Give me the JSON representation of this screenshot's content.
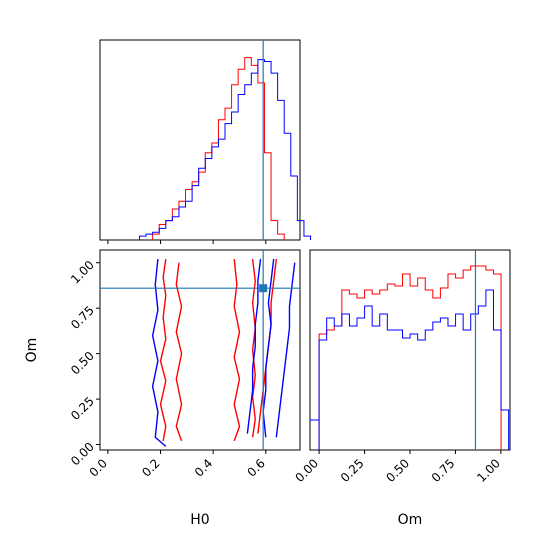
{
  "chart_data": {
    "type": "corner",
    "params": [
      "H0",
      "Om"
    ],
    "truth": {
      "H0": 0.59,
      "Om": 0.86
    },
    "colors": {
      "series_a": "#ff0000",
      "series_b": "#0000ff",
      "truth": "#1f77b4"
    },
    "panels": {
      "h0_hist": {
        "type": "histogram",
        "xlim": [
          -0.03,
          0.73
        ],
        "bin_width": 0.025,
        "series": [
          {
            "color": "#ff0000",
            "bin_start": 0.17,
            "values": [
              0.03,
              0.08,
              0.1,
              0.16,
              0.2,
              0.26,
              0.3,
              0.35,
              0.45,
              0.5,
              0.62,
              0.68,
              0.8,
              0.88,
              0.94,
              0.9,
              0.81,
              0.45,
              0.1,
              0.03
            ]
          },
          {
            "color": "#0000ff",
            "bin_start": 0.12,
            "values": [
              0.02,
              0.03,
              0.04,
              0.06,
              0.1,
              0.12,
              0.17,
              0.2,
              0.28,
              0.37,
              0.42,
              0.48,
              0.52,
              0.6,
              0.66,
              0.75,
              0.8,
              0.86,
              0.93,
              0.92,
              0.86,
              0.72,
              0.55,
              0.33,
              0.1,
              0.02
            ]
          }
        ]
      },
      "om_hist": {
        "type": "histogram",
        "xlim": [
          -0.05,
          1.05
        ],
        "bin_width": 0.0417,
        "bin_start": 0.0,
        "series": [
          {
            "color": "#ff0000",
            "values": [
              0.58,
              0.6,
              0.62,
              0.8,
              0.78,
              0.76,
              0.8,
              0.78,
              0.8,
              0.83,
              0.82,
              0.88,
              0.82,
              0.86,
              0.8,
              0.76,
              0.81,
              0.88,
              0.86,
              0.9,
              0.92,
              0.92,
              0.9,
              0.88
            ]
          },
          {
            "color": "#0000ff",
            "values": [
              0.55,
              0.66,
              0.62,
              0.68,
              0.62,
              0.66,
              0.72,
              0.62,
              0.68,
              0.6,
              0.6,
              0.56,
              0.58,
              0.55,
              0.6,
              0.64,
              0.66,
              0.62,
              0.68,
              0.6,
              0.68,
              0.72,
              0.8,
              0.6,
              0.2
            ]
          }
        ]
      },
      "joint": {
        "type": "contour",
        "xlim": [
          -0.03,
          0.73
        ],
        "ylim": [
          -0.03,
          1.07
        ],
        "series": [
          {
            "color": "#ff0000",
            "contours": [
              [
                [
                  0.22,
                  1.02
                ],
                [
                  0.21,
                  0.92
                ],
                [
                  0.22,
                  0.82
                ],
                [
                  0.21,
                  0.7
                ],
                [
                  0.22,
                  0.58
                ],
                [
                  0.2,
                  0.46
                ],
                [
                  0.22,
                  0.35
                ],
                [
                  0.2,
                  0.22
                ],
                [
                  0.22,
                  0.1
                ],
                [
                  0.21,
                  0.02
                ]
              ],
              [
                [
                  0.27,
                  1.0
                ],
                [
                  0.26,
                  0.88
                ],
                [
                  0.28,
                  0.76
                ],
                [
                  0.26,
                  0.62
                ],
                [
                  0.28,
                  0.5
                ],
                [
                  0.26,
                  0.36
                ],
                [
                  0.28,
                  0.22
                ],
                [
                  0.26,
                  0.1
                ],
                [
                  0.28,
                  0.02
                ]
              ],
              [
                [
                  0.48,
                  1.02
                ],
                [
                  0.49,
                  0.88
                ],
                [
                  0.48,
                  0.76
                ],
                [
                  0.5,
                  0.62
                ],
                [
                  0.48,
                  0.48
                ],
                [
                  0.5,
                  0.36
                ],
                [
                  0.48,
                  0.22
                ],
                [
                  0.5,
                  0.1
                ],
                [
                  0.48,
                  0.02
                ]
              ],
              [
                [
                  0.55,
                  1.02
                ],
                [
                  0.56,
                  0.9
                ],
                [
                  0.55,
                  0.78
                ],
                [
                  0.56,
                  0.64
                ],
                [
                  0.55,
                  0.52
                ],
                [
                  0.56,
                  0.38
                ],
                [
                  0.55,
                  0.26
                ],
                [
                  0.56,
                  0.14
                ],
                [
                  0.55,
                  0.04
                ]
              ],
              [
                [
                  0.64,
                  1.02
                ],
                [
                  0.63,
                  0.9
                ],
                [
                  0.62,
                  0.78
                ],
                [
                  0.62,
                  0.66
                ],
                [
                  0.61,
                  0.54
                ],
                [
                  0.6,
                  0.42
                ],
                [
                  0.59,
                  0.3
                ],
                [
                  0.58,
                  0.18
                ],
                [
                  0.57,
                  0.06
                ]
              ]
            ]
          },
          {
            "color": "#0000ff",
            "contours": [
              [
                [
                  0.19,
                  1.02
                ],
                [
                  0.18,
                  0.88
                ],
                [
                  0.19,
                  0.74
                ],
                [
                  0.17,
                  0.6
                ],
                [
                  0.19,
                  0.46
                ],
                [
                  0.17,
                  0.32
                ],
                [
                  0.19,
                  0.18
                ],
                [
                  0.18,
                  0.04
                ],
                [
                  0.22,
                  -0.01
                ]
              ],
              [
                [
                  0.58,
                  1.02
                ],
                [
                  0.57,
                  0.9
                ],
                [
                  0.57,
                  0.78
                ],
                [
                  0.56,
                  0.66
                ],
                [
                  0.56,
                  0.54
                ],
                [
                  0.55,
                  0.42
                ],
                [
                  0.55,
                  0.3
                ],
                [
                  0.54,
                  0.18
                ],
                [
                  0.53,
                  0.06
                ]
              ],
              [
                [
                  0.63,
                  1.02
                ],
                [
                  0.62,
                  0.9
                ],
                [
                  0.61,
                  0.78
                ],
                [
                  0.62,
                  0.66
                ],
                [
                  0.61,
                  0.54
                ],
                [
                  0.6,
                  0.42
                ],
                [
                  0.6,
                  0.3
                ],
                [
                  0.59,
                  0.18
                ],
                [
                  0.6,
                  0.04
                ]
              ],
              [
                [
                  0.71,
                  1.0
                ],
                [
                  0.7,
                  0.88
                ],
                [
                  0.69,
                  0.76
                ],
                [
                  0.69,
                  0.64
                ],
                [
                  0.68,
                  0.52
                ],
                [
                  0.67,
                  0.4
                ],
                [
                  0.66,
                  0.28
                ],
                [
                  0.65,
                  0.16
                ],
                [
                  0.64,
                  0.04
                ]
              ]
            ]
          }
        ]
      }
    },
    "x_ticks_h0": [
      "0.0",
      "0.2",
      "0.4",
      "0.6"
    ],
    "x_tick_values_h0": [
      0.0,
      0.2,
      0.4,
      0.6
    ],
    "y_ticks_om": [
      "0.00",
      "0.25",
      "0.50",
      "0.75",
      "1.00"
    ],
    "y_tick_values_om": [
      0.0,
      0.25,
      0.5,
      0.75,
      1.0
    ],
    "x_ticks_om": [
      "0.00",
      "0.25",
      "0.50",
      "0.75",
      "1.00"
    ],
    "x_tick_values_om": [
      0.0,
      0.25,
      0.5,
      0.75,
      1.0
    ],
    "xlabel_joint": "H0",
    "ylabel_joint": "Om",
    "xlabel_om": "Om"
  }
}
